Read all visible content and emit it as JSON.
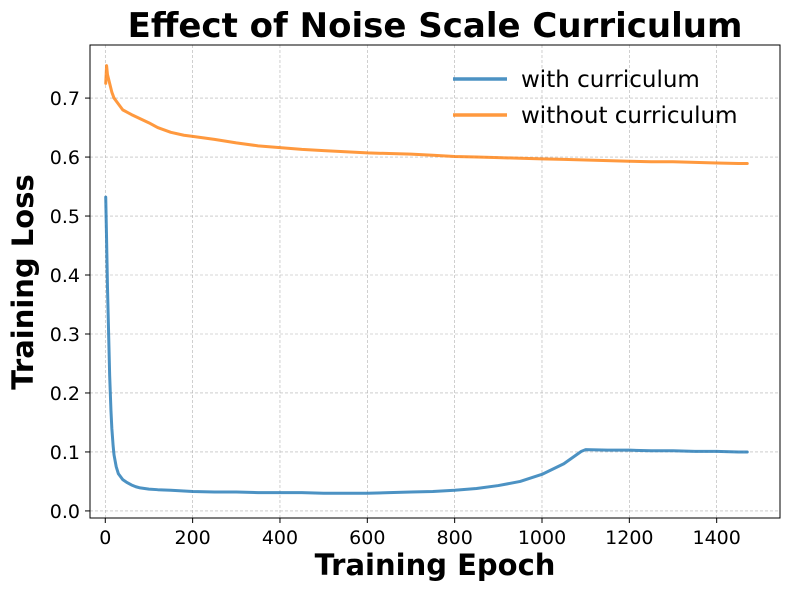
{
  "chart_data": {
    "type": "line",
    "title": "Effect of Noise Scale Curriculum",
    "xlabel": "Training Epoch",
    "ylabel": "Training Loss",
    "xlim": [
      -35,
      1545
    ],
    "ylim": [
      -0.012,
      0.79
    ],
    "xticks": [
      0,
      200,
      400,
      600,
      800,
      1000,
      1200,
      1400
    ],
    "yticks": [
      0.0,
      0.1,
      0.2,
      0.3,
      0.4,
      0.5,
      0.6,
      0.7
    ],
    "ytick_labels": [
      "0.0",
      "0.1",
      "0.2",
      "0.3",
      "0.4",
      "0.5",
      "0.6",
      "0.7"
    ],
    "grid": true,
    "legend_position": "top-right",
    "series": [
      {
        "name": "with curriculum",
        "color": "#1f77b4",
        "x": [
          1,
          3,
          5,
          8,
          10,
          13,
          15,
          18,
          20,
          25,
          30,
          40,
          50,
          60,
          70,
          80,
          100,
          120,
          150,
          200,
          250,
          300,
          350,
          400,
          450,
          500,
          550,
          600,
          650,
          700,
          750,
          800,
          850,
          900,
          950,
          1000,
          1050,
          1090,
          1100,
          1150,
          1200,
          1250,
          1300,
          1350,
          1400,
          1450,
          1470
        ],
        "values": [
          0.532,
          0.46,
          0.38,
          0.29,
          0.23,
          0.17,
          0.14,
          0.11,
          0.095,
          0.075,
          0.063,
          0.053,
          0.048,
          0.044,
          0.041,
          0.039,
          0.037,
          0.036,
          0.035,
          0.033,
          0.032,
          0.032,
          0.031,
          0.031,
          0.031,
          0.03,
          0.03,
          0.03,
          0.031,
          0.032,
          0.033,
          0.035,
          0.038,
          0.043,
          0.05,
          0.062,
          0.08,
          0.101,
          0.104,
          0.103,
          0.103,
          0.102,
          0.102,
          0.101,
          0.101,
          0.1,
          0.1
        ]
      },
      {
        "name": "without curriculum",
        "color": "#ff7f0e",
        "x": [
          1,
          3,
          5,
          10,
          15,
          20,
          30,
          40,
          60,
          80,
          100,
          120,
          150,
          180,
          200,
          250,
          300,
          350,
          400,
          450,
          500,
          550,
          600,
          650,
          700,
          750,
          800,
          850,
          900,
          950,
          1000,
          1050,
          1100,
          1150,
          1200,
          1250,
          1300,
          1350,
          1400,
          1450,
          1470
        ],
        "values": [
          0.725,
          0.755,
          0.74,
          0.725,
          0.71,
          0.7,
          0.69,
          0.68,
          0.672,
          0.665,
          0.658,
          0.65,
          0.642,
          0.637,
          0.635,
          0.63,
          0.624,
          0.619,
          0.616,
          0.613,
          0.611,
          0.609,
          0.607,
          0.606,
          0.605,
          0.603,
          0.601,
          0.6,
          0.599,
          0.598,
          0.597,
          0.596,
          0.595,
          0.594,
          0.593,
          0.592,
          0.592,
          0.591,
          0.59,
          0.589,
          0.589
        ]
      }
    ]
  }
}
